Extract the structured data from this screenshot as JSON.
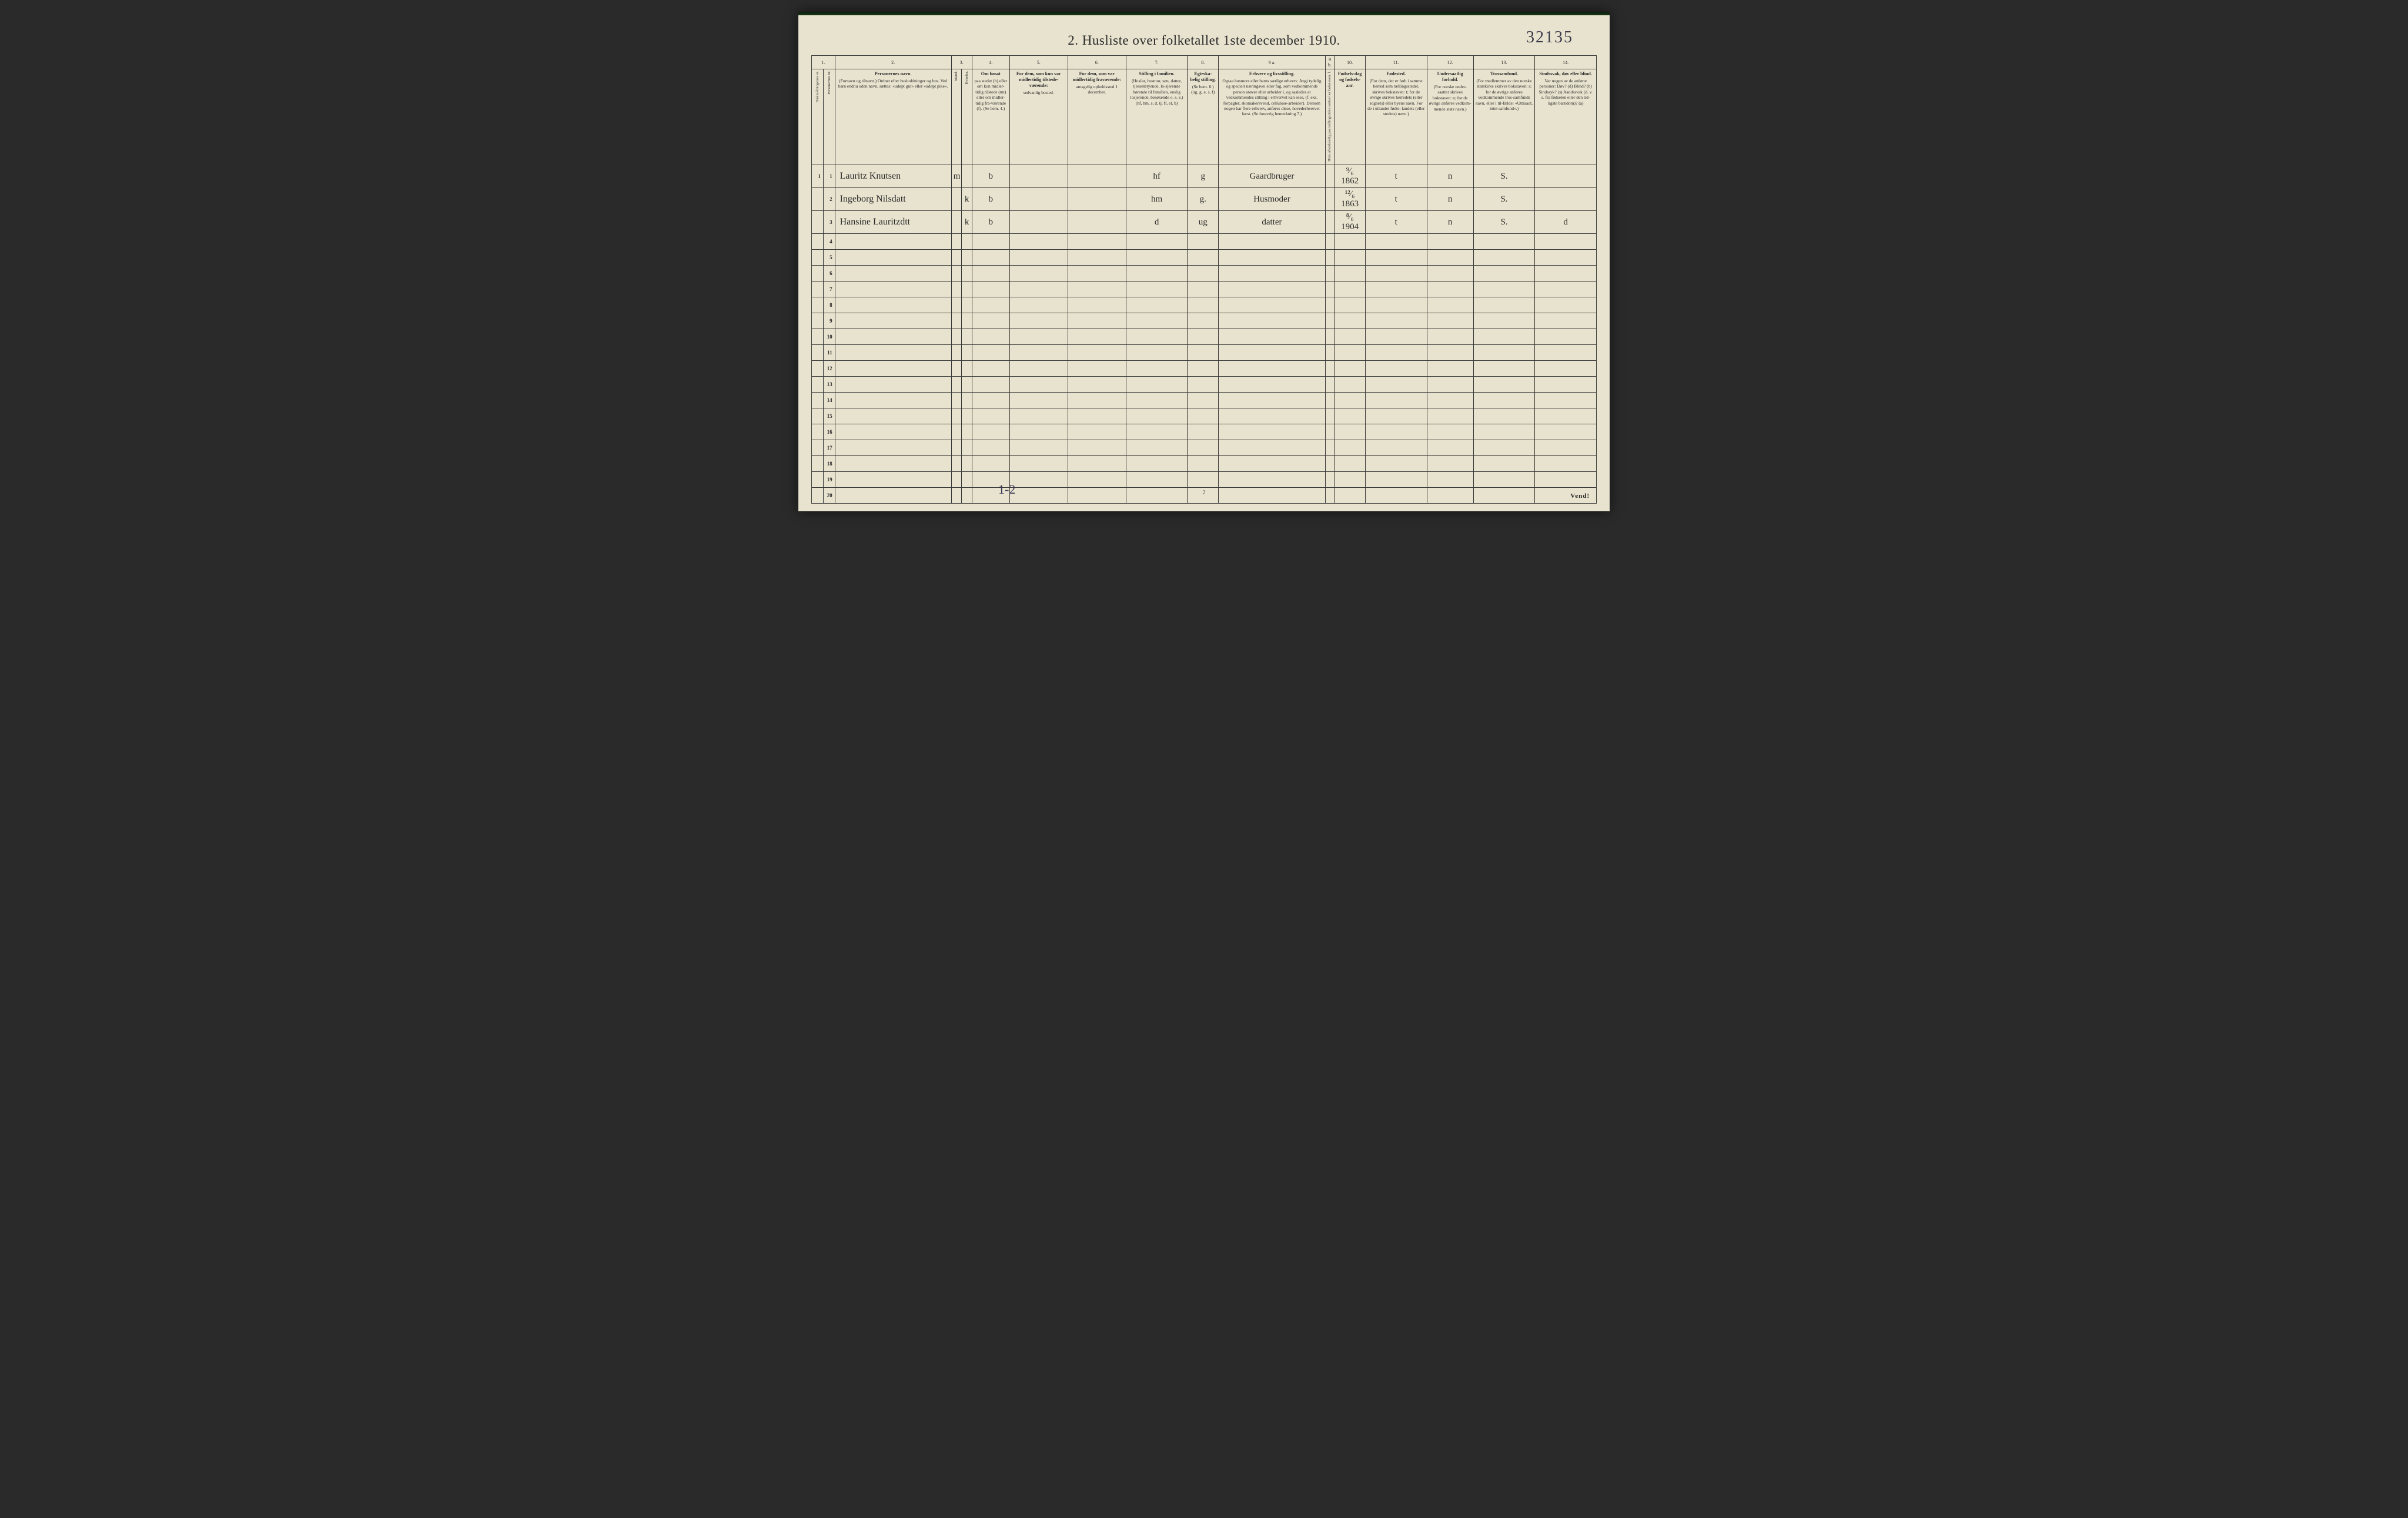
{
  "document": {
    "title": "2.  Husliste over folketallet 1ste december 1910.",
    "handwritten_id": "32135",
    "footer_mark": "1-2",
    "page_number": "2",
    "turn_over": "Vend!"
  },
  "colors": {
    "paper": "#e8e3ce",
    "ink": "#2a2a2a",
    "rule": "#3a3a3a",
    "script": "#2b2b2b",
    "background": "#2a2a2a"
  },
  "column_numbers": [
    "1.",
    "2.",
    "3.",
    "4.",
    "5.",
    "6.",
    "7.",
    "8.",
    "9 a.",
    "9 b.",
    "10.",
    "11.",
    "12.",
    "13.",
    "14."
  ],
  "headers": {
    "c1a": "Husholdningenes nr.",
    "c1b": "Personernes nr.",
    "c2": {
      "title": "Personernes navn.",
      "sub": "(Fornavn og tilnavn.)\nOrdnet efter husholdninger og hus.\nVed barn endnu uden navn, sættes: «udøpt gut» eller «udøpt pike»."
    },
    "c3": {
      "title": "Kjøn.",
      "sub_a": "Mand.",
      "sub_b": "Kvinder.",
      "foot": "m. k."
    },
    "c4": {
      "title": "Om bosat",
      "sub": "paa stedet (b) eller om kun midler-tidig tilstede (mt) eller om midler-tidig fra-værende (f). (Se bem. 4.)"
    },
    "c5": {
      "title": "For dem, som kun var midlertidig tilstede-værende:",
      "sub": "sedvanlig bosted."
    },
    "c6": {
      "title": "For dem, som var midlertidig fraværende:",
      "sub": "antagelig opholdssted 1 december."
    },
    "c7": {
      "title": "Stilling i familien.",
      "sub": "(Husfar, husmor, søn, datter, tjenestetyende, lo-sjerende hørende til familien, enslig losjerende, besøkende o. s. v.)\n(hf, hm, s, d, tj, fl, el, b)"
    },
    "c8": {
      "title": "Egteska-belig stilling.",
      "sub": "(Se bem. 6.)\n(ug, g, e, s, f)"
    },
    "c9a": {
      "title": "Erhverv og livsstilling.",
      "sub": "Ogsaa husmors eller barns særlige erhverv. Angi tydelig og specielt næringsvei eller fag, som vedkommende person utøver eller arbeider i, og saaledes at vedkommendes stilling i erhvervet kan sees, (f. eks. forpagter, skomakersvend, cellulose-arbeider). Dersom nogen har flere erhverv, anføres disse, hovederhvervet først. (Se forøvrig bemerkning 7.)"
    },
    "c9b": "Hvis arbeidsledig paa tællingstiden sættes her bokstaven: l.",
    "c10": {
      "title": "Fødsels-dag og fødsels-aar."
    },
    "c11": {
      "title": "Fødested.",
      "sub": "(For dem, der er født i samme herred som tællingsstedet, skrives bokstaven: t; for de øvrige skrives herredets (eller sognets) eller byens navn. For de i utlandet fødte: landets (eller stedets) navn.)"
    },
    "c12": {
      "title": "Undersaatlig forhold.",
      "sub": "(For norske under-saatter skrives bokstaven: n; for de øvrige anføres vedkom-mende stats navn.)"
    },
    "c13": {
      "title": "Trossamfund.",
      "sub": "(For medlemmer av den norske statskirke skrives bokstaven: s; for de øvrige anføres vedkommende tros-samfunds navn, eller i til-fælde: «Uttraadt, intet samfund».)"
    },
    "c14": {
      "title": "Sindssvak, døv eller blind.",
      "sub": "Var nogen av de anførte personer:\nDøv? (d)\nBlind? (b)\nSindssyk? (s)\nAandssvak (d. v. s. fra fødselen eller den tid-ligste barndom)? (a)"
    }
  },
  "rows": [
    {
      "hh": "1",
      "pn": "1",
      "name": "Lauritz Knutsen",
      "sex_m": "m",
      "sex_k": "",
      "residency": "b",
      "col5": "",
      "col6": "",
      "family_pos": "hf",
      "marital": "g",
      "occupation": "Gaardbruger",
      "col9b": "",
      "birth": "⁹⁄₆ 1862",
      "birthplace": "t",
      "nationality": "n",
      "faith": "S.",
      "disability": ""
    },
    {
      "hh": "",
      "pn": "2",
      "name": "Ingeborg Nilsdatt",
      "sex_m": "",
      "sex_k": "k",
      "residency": "b",
      "col5": "",
      "col6": "",
      "family_pos": "hm",
      "marital": "g.",
      "occupation": "Husmoder",
      "col9b": "",
      "birth": "¹²⁄₆ 1863",
      "birthplace": "t",
      "nationality": "n",
      "faith": "S.",
      "disability": ""
    },
    {
      "hh": "",
      "pn": "3",
      "name": "Hansine Lauritzdtt",
      "sex_m": "",
      "sex_k": "k",
      "residency": "b",
      "col5": "",
      "col6": "",
      "family_pos": "d",
      "marital": "ug",
      "occupation": "datter",
      "col9b": "",
      "birth": "⁸⁄₆ 1904",
      "birthplace": "t",
      "nationality": "n",
      "faith": "S.",
      "disability": "d"
    }
  ],
  "empty_row_numbers": [
    "4",
    "5",
    "6",
    "7",
    "8",
    "9",
    "10",
    "11",
    "12",
    "13",
    "14",
    "15",
    "16",
    "17",
    "18",
    "19",
    "20"
  ]
}
